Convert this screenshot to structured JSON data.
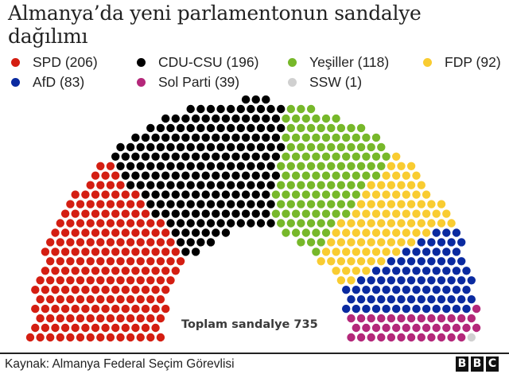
{
  "title": "Almanya’da yeni parlamentonun sandalye dağılımı",
  "legend": {
    "row1": [
      {
        "label": "SPD (206)",
        "color": "#d41e12"
      },
      {
        "label": "CDU-CSU (196)",
        "color": "#000000"
      },
      {
        "label": "Yeşiller (118)",
        "color": "#77b82a"
      },
      {
        "label": "FDP (92)",
        "color": "#f9cc31"
      }
    ],
    "row2": [
      {
        "label": "AfD (83)",
        "color": "#0a2aa0"
      },
      {
        "label": "Sol Parti (39)",
        "color": "#b4287a"
      },
      {
        "label": "SSW (1)",
        "color": "#d0d0d0"
      }
    ]
  },
  "total_label": "Toplam sandalye 735",
  "source": "Kaynak: Almanya Federal Seçim Görevlisi",
  "logo": [
    "B",
    "B",
    "C"
  ],
  "chart_data": {
    "type": "parliament",
    "title": "Almanya’da yeni parlamentonun sandalye dağılımı",
    "total": 735,
    "series": [
      {
        "name": "SPD",
        "seats": 206,
        "color": "#d41e12"
      },
      {
        "name": "CDU-CSU",
        "seats": 196,
        "color": "#000000"
      },
      {
        "name": "Yeşiller",
        "seats": 118,
        "color": "#77b82a"
      },
      {
        "name": "FDP",
        "seats": 92,
        "color": "#f9cc31"
      },
      {
        "name": "AfD",
        "seats": 83,
        "color": "#0a2aa0"
      },
      {
        "name": "Sol Parti",
        "seats": 39,
        "color": "#b4287a"
      },
      {
        "name": "SSW",
        "seats": 1,
        "color": "#d0d0d0"
      }
    ],
    "annotation": "Toplam sandalye 735",
    "legend_position": "top"
  }
}
